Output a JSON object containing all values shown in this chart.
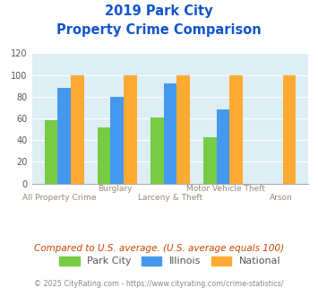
{
  "title_line1": "2019 Park City",
  "title_line2": "Property Crime Comparison",
  "categories": [
    "All Property Crime",
    "Burglary",
    "Larceny & Theft",
    "Motor Vehicle Theft",
    "Arson"
  ],
  "park_city": [
    58,
    52,
    61,
    43,
    0
  ],
  "illinois": [
    88,
    80,
    92,
    68,
    0
  ],
  "national": [
    100,
    100,
    100,
    100,
    100
  ],
  "bar_colors": {
    "park_city": "#77cc44",
    "illinois": "#4499ee",
    "national": "#ffaa33"
  },
  "ylim": [
    0,
    120
  ],
  "yticks": [
    0,
    20,
    40,
    60,
    80,
    100,
    120
  ],
  "label_top": [
    "",
    "Burglary",
    "",
    "Motor Vehicle Theft",
    ""
  ],
  "label_bottom": [
    "All Property Crime",
    "",
    "Larceny & Theft",
    "",
    "Arson"
  ],
  "title_color": "#1155cc",
  "axis_label_color": "#998877",
  "bg_color": "#ddeef5",
  "legend_labels": [
    "Park City",
    "Illinois",
    "National"
  ],
  "legend_text_color": "#555555",
  "note": "Compared to U.S. average. (U.S. average equals 100)",
  "footnote": "© 2025 CityRating.com - https://www.cityrating.com/crime-statistics/",
  "note_color": "#cc4400",
  "footnote_color": "#888888"
}
